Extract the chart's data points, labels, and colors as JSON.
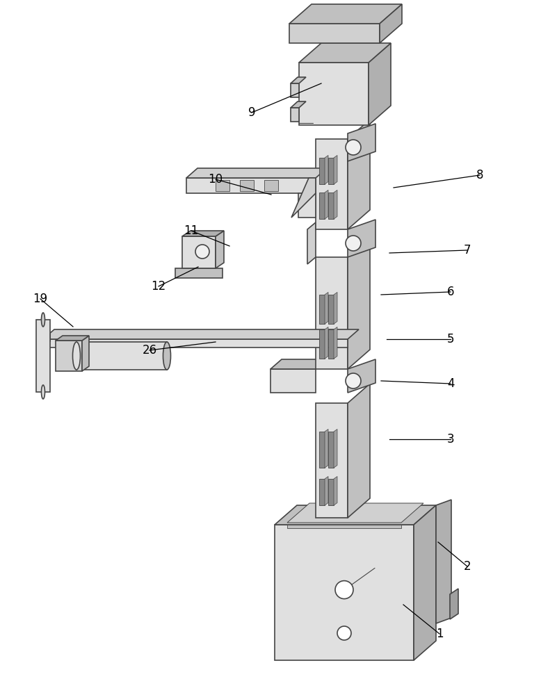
{
  "bg": "#ffffff",
  "lc": "#454545",
  "lw": 1.2,
  "lw_thin": 0.8,
  "label_fs": 12,
  "labels": {
    "1": [
      632,
      88,
      580,
      130
    ],
    "2": [
      672,
      185,
      630,
      220
    ],
    "3": [
      648,
      368,
      560,
      368
    ],
    "4": [
      648,
      448,
      548,
      452
    ],
    "5": [
      648,
      512,
      556,
      512
    ],
    "6": [
      648,
      580,
      548,
      576
    ],
    "7": [
      672,
      640,
      560,
      636
    ],
    "8": [
      690,
      748,
      566,
      730
    ],
    "9": [
      362,
      838,
      462,
      880
    ],
    "10": [
      310,
      742,
      390,
      720
    ],
    "11": [
      275,
      668,
      330,
      646
    ],
    "12": [
      228,
      588,
      285,
      616
    ],
    "19": [
      58,
      570,
      105,
      530
    ],
    "26": [
      215,
      496,
      310,
      508
    ]
  }
}
